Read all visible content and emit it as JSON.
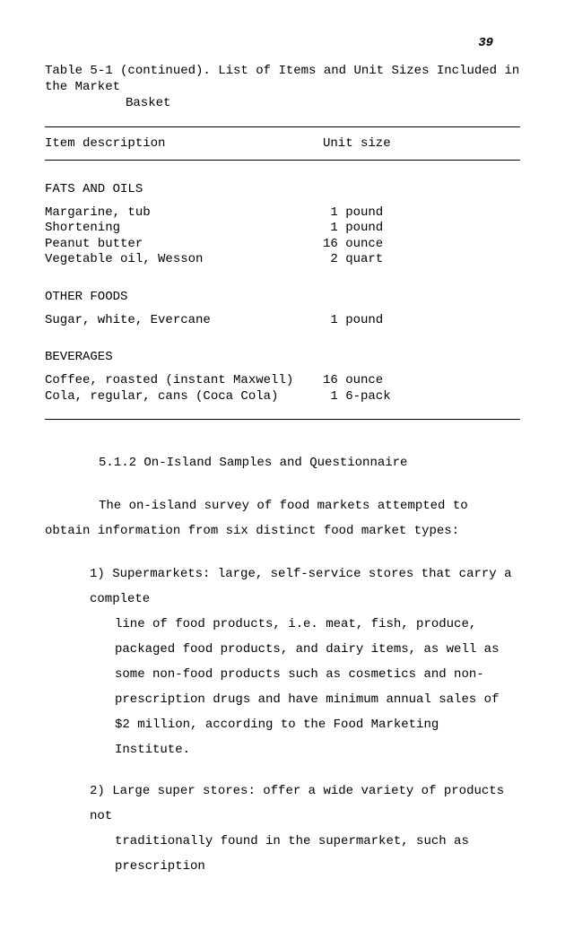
{
  "page_number": "39",
  "table": {
    "caption_line1": "Table 5-1 (continued).  List of Items and Unit Sizes Included in the Market",
    "caption_line2": "Basket",
    "header_desc": "Item description",
    "header_size": "Unit size",
    "groups": [
      {
        "title": "FATS AND OILS",
        "rows": [
          {
            "desc": "Margarine, tub",
            "size": " 1 pound"
          },
          {
            "desc": "Shortening",
            "size": " 1 pound"
          },
          {
            "desc": "Peanut butter",
            "size": "16 ounce"
          },
          {
            "desc": "Vegetable oil, Wesson",
            "size": " 2 quart"
          }
        ]
      },
      {
        "title": "OTHER FOODS",
        "rows": [
          {
            "desc": "Sugar, white, Evercane",
            "size": " 1 pound"
          }
        ]
      },
      {
        "title": "BEVERAGES",
        "rows": [
          {
            "desc": "Coffee, roasted (instant Maxwell)",
            "size": "16 ounce"
          },
          {
            "desc": "Cola, regular, cans (Coca Cola)",
            "size": " 1 6-pack"
          }
        ]
      }
    ]
  },
  "section": {
    "heading": "5.1.2  On-Island Samples and Questionnaire",
    "para": "The on-island survey of food markets attempted to obtain information from six distinct food market types:",
    "list": [
      {
        "num": "1)",
        "lead": "Supermarkets:  large, self-service stores that carry a complete",
        "cont": "line of food products, i.e. meat, fish, produce, packaged food products, and dairy items, as well as some non-food products such as cosmetics and non-prescription drugs and have minimum annual sales of $2 million, according to the Food Marketing Institute."
      },
      {
        "num": "2)",
        "lead": "Large super stores:  offer a wide variety of products not",
        "cont": "traditionally found in the supermarket, such as prescription"
      }
    ]
  }
}
